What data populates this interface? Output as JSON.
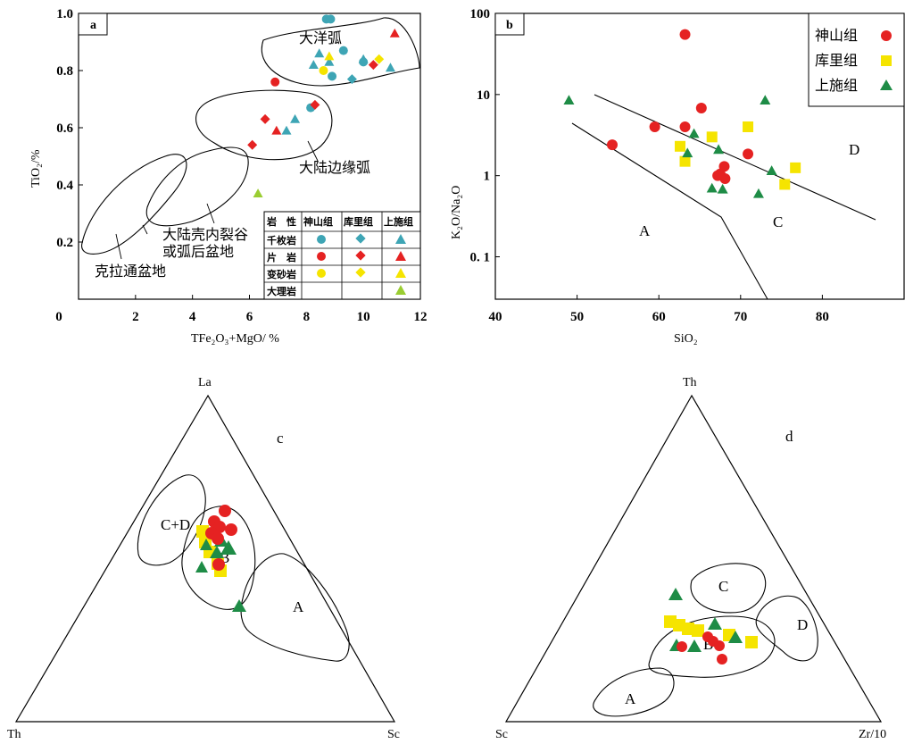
{
  "colors": {
    "shenshan": "#e52222",
    "kuli": "#f5e400",
    "shangshi": "#1e8c46",
    "shangshi_a": "#3aa6b5",
    "marble": "#9acd32",
    "phyllite_teal": "#3ea5b5"
  },
  "chart_data": [
    {
      "panel": "a",
      "type": "scatter",
      "xlabel": "TFe₂O₃+MgO/ %",
      "ylabel": "TiO₂/%",
      "xlim": [
        0,
        12
      ],
      "ylim": [
        0,
        1.0
      ],
      "xticks": [
        "0",
        "2",
        "4",
        "6",
        "8",
        "10",
        "12"
      ],
      "yticks": [
        "0",
        "0.2",
        "0.4",
        "0.6",
        "0.8",
        "1.0"
      ],
      "regions": [
        "大洋弧",
        "大陆边缘弧",
        "大陆壳内裂谷",
        "或弧后盆地",
        "克拉通盆地"
      ],
      "legend_table": {
        "header": [
          "岩　性",
          "神山组",
          "库里组",
          "上施组"
        ],
        "rows": [
          "千枚岩",
          "片　岩",
          "变砂岩",
          "大理岩"
        ]
      },
      "points": [
        {
          "rock": "phyllite",
          "group": "shenshan",
          "x": 8.7,
          "y": 0.98
        },
        {
          "rock": "phyllite",
          "group": "shenshan",
          "x": 8.85,
          "y": 0.98
        },
        {
          "rock": "phyllite",
          "group": "shenshan",
          "x": 9.3,
          "y": 0.87
        },
        {
          "rock": "phyllite",
          "group": "shenshan",
          "x": 10.0,
          "y": 0.83
        },
        {
          "rock": "phyllite",
          "group": "shenshan",
          "x": 8.9,
          "y": 0.78
        },
        {
          "rock": "phyllite",
          "group": "shenshan",
          "x": 8.15,
          "y": 0.67
        },
        {
          "rock": "phyllite",
          "group": "shangshi",
          "x": 8.45,
          "y": 0.86
        },
        {
          "rock": "phyllite",
          "group": "shangshi",
          "x": 8.25,
          "y": 0.82
        },
        {
          "rock": "phyllite",
          "group": "shangshi",
          "x": 8.8,
          "y": 0.83
        },
        {
          "rock": "phyllite",
          "group": "shangshi",
          "x": 10.0,
          "y": 0.84
        },
        {
          "rock": "phyllite",
          "group": "shangshi",
          "x": 10.95,
          "y": 0.81
        },
        {
          "rock": "phyllite",
          "group": "shangshi",
          "x": 7.6,
          "y": 0.63
        },
        {
          "rock": "phyllite",
          "group": "shangshi",
          "x": 7.3,
          "y": 0.59
        },
        {
          "rock": "phyllite",
          "group": "kuli",
          "x": 9.6,
          "y": 0.77
        },
        {
          "rock": "schist",
          "group": "shenshan",
          "x": 6.9,
          "y": 0.76
        },
        {
          "rock": "schist",
          "group": "kuli",
          "x": 10.35,
          "y": 0.82
        },
        {
          "rock": "schist",
          "group": "kuli",
          "x": 8.3,
          "y": 0.68
        },
        {
          "rock": "schist",
          "group": "kuli",
          "x": 6.55,
          "y": 0.63
        },
        {
          "rock": "schist",
          "group": "kuli",
          "x": 6.1,
          "y": 0.54
        },
        {
          "rock": "schist",
          "group": "shangshi",
          "x": 11.1,
          "y": 0.93
        },
        {
          "rock": "schist",
          "group": "shangshi",
          "x": 6.95,
          "y": 0.59
        },
        {
          "rock": "sandstone",
          "group": "shenshan",
          "x": 8.6,
          "y": 0.8
        },
        {
          "rock": "sandstone",
          "group": "kuli",
          "x": 10.55,
          "y": 0.84
        },
        {
          "rock": "sandstone",
          "group": "shangshi",
          "x": 8.8,
          "y": 0.85
        },
        {
          "rock": "marble",
          "group": "shangshi",
          "x": 6.3,
          "y": 0.37
        }
      ]
    },
    {
      "panel": "b",
      "type": "scatter",
      "xlabel": "SiO₂",
      "ylabel": "K₂O/Na₂O",
      "xlim": [
        40,
        90
      ],
      "ylim": [
        0.03,
        100
      ],
      "yscale": "log",
      "xticks": [
        "40",
        "50",
        "60",
        "70",
        "80"
      ],
      "yticks": [
        "100",
        "10",
        "1",
        "0. 1"
      ],
      "regions": [
        "A",
        "C",
        "D"
      ],
      "legend": [
        "神山组",
        "库里组",
        "上施组"
      ],
      "series": [
        {
          "group": "shenshan",
          "x": [
            63.2,
            65.2,
            59.5,
            63.2,
            54.3,
            67.2,
            68.1,
            67.5,
            70.9,
            68.0
          ],
          "y": [
            55,
            6.8,
            4.0,
            4.0,
            2.4,
            1.0,
            0.92,
            1.05,
            1.85,
            1.3
          ]
        },
        {
          "group": "kuli",
          "x": [
            70.9,
            66.5,
            62.6,
            63.2,
            76.7,
            75.4
          ],
          "y": [
            4.0,
            3.0,
            2.3,
            1.5,
            1.25,
            0.78
          ]
        },
        {
          "group": "shangshi",
          "x": [
            49.0,
            73.0,
            64.3,
            67.3,
            63.5,
            73.8,
            66.5,
            67.8,
            72.2
          ],
          "y": [
            8.5,
            8.5,
            3.3,
            2.1,
            1.9,
            1.15,
            0.7,
            0.68,
            0.6
          ]
        }
      ]
    },
    {
      "panel": "c",
      "type": "ternary",
      "vertices": [
        "La",
        "Th",
        "Sc"
      ],
      "regions": [
        "C+D",
        "B",
        "A"
      ]
    },
    {
      "panel": "d",
      "type": "ternary",
      "vertices": [
        "Th",
        "Sc",
        "Zr/10"
      ],
      "regions": [
        "C",
        "D",
        "B",
        "A"
      ]
    }
  ]
}
